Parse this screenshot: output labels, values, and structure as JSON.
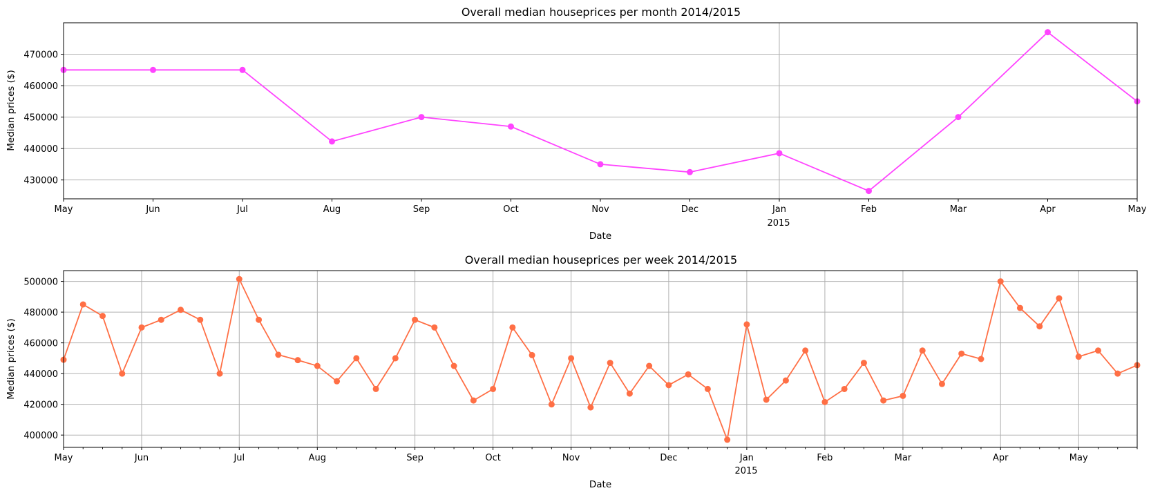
{
  "chart_data": [
    {
      "type": "line",
      "title": "Overall median houseprices per month 2014/2015",
      "xlabel": "Date",
      "ylabel": "Median prices ($)",
      "year_label": "2015",
      "color": "#ff44ff",
      "grid": "y-lines, plus vertical line at Jan",
      "x_range": [
        "2014-05",
        "2015-05"
      ],
      "ylim": [
        424000,
        480000
      ],
      "yticks": [
        430000,
        440000,
        450000,
        460000,
        470000
      ],
      "xtick_labels": [
        "May",
        "Jun",
        "Jul",
        "Aug",
        "Sep",
        "Oct",
        "Nov",
        "Dec",
        "Jan",
        "Feb",
        "Mar",
        "Apr",
        "May"
      ],
      "x": [
        "2014-05",
        "2014-06",
        "2014-07",
        "2014-08",
        "2014-09",
        "2014-10",
        "2014-11",
        "2014-12",
        "2015-01",
        "2015-02",
        "2015-03",
        "2015-04",
        "2015-05"
      ],
      "values": [
        465000,
        465000,
        465000,
        442250,
        450000,
        447000,
        435000,
        432500,
        438500,
        426500,
        450000,
        477000,
        455000
      ]
    },
    {
      "type": "line",
      "title": "Overall median houseprices per week 2014/2015",
      "xlabel": "Date",
      "ylabel": "Median prices ($)",
      "year_label": "2015",
      "color": "#ff6f45",
      "grid": "both",
      "x_range": [
        "2014-05-04",
        "2015-05-24"
      ],
      "ylim": [
        392000,
        507000
      ],
      "yticks": [
        400000,
        420000,
        440000,
        460000,
        480000,
        500000
      ],
      "xtick_labels": [
        "May",
        "Jun",
        "Jul",
        "Aug",
        "Sep",
        "Oct",
        "Nov",
        "Dec",
        "Jan",
        "Feb",
        "Mar",
        "Apr",
        "May"
      ],
      "xtick_dates": [
        "2014-05-04",
        "2014-06-01",
        "2014-07-06",
        "2014-08-03",
        "2014-09-07",
        "2014-10-05",
        "2014-11-02",
        "2014-12-07",
        "2015-01-04",
        "2015-02-01",
        "2015-03-01",
        "2015-04-05",
        "2015-05-03"
      ],
      "values": [
        449000,
        485000,
        477500,
        440000,
        470000,
        475000,
        481500,
        475000,
        440000,
        501500,
        475000,
        452250,
        448750,
        445000,
        435000,
        450000,
        430000,
        450000,
        475000,
        470000,
        445000,
        422500,
        429975,
        470000,
        452000,
        419950,
        450000,
        418000,
        447000,
        427000,
        445000,
        432500,
        439500,
        430000,
        396950,
        472000,
        423000,
        435500,
        455000,
        421500,
        429975,
        447000,
        422500,
        425500,
        455000,
        433250,
        453000,
        449500,
        500000,
        482700,
        470750,
        489000,
        451000,
        455000,
        440000,
        445500
      ]
    }
  ]
}
